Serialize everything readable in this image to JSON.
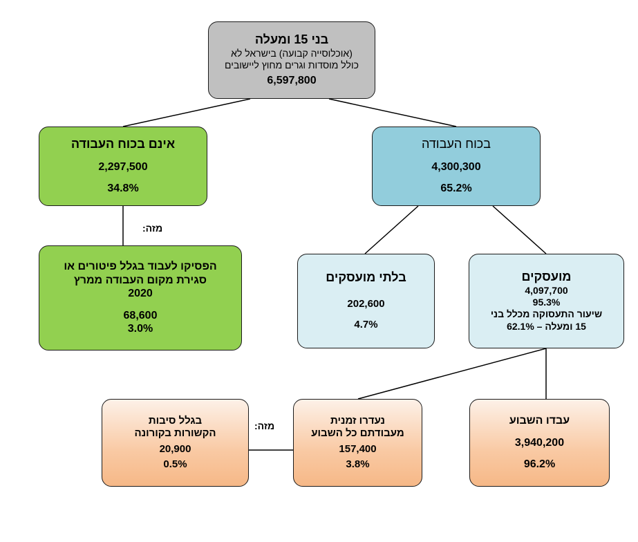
{
  "root": {
    "title": "בני 15 ומעלה",
    "subtitle_line1": "(אוכלוסייה קבועה) בישראל לא",
    "subtitle_line2": "כולל מוסדות וגרים מחוץ ליישובים",
    "value": "6,597,800"
  },
  "labor_force": {
    "title": "בכוח העבודה",
    "value": "4,300,300",
    "percent": "65.2%"
  },
  "not_labor_force": {
    "title": "אינם בכוח העבודה",
    "value": "2,297,500",
    "percent": "34.8%"
  },
  "of_which_labels": {
    "left": "מזה:",
    "bottom": "מזה:"
  },
  "stopped_working": {
    "line1": "הפסיקו לעבוד בגלל פיטורים או",
    "line2": "סגירת מקום העבודה ממרץ",
    "line3": "2020",
    "value": "68,600",
    "percent": "3.0%"
  },
  "unemployed": {
    "title": "בלתי מועסקים",
    "value": "202,600",
    "percent": "4.7%"
  },
  "employed": {
    "title": "מועסקים",
    "value": "4,097,700",
    "percent": "95.3%",
    "rate_line1": "שיעור התעסוקה מכלל בני",
    "rate_line2": "15 ומעלה – 62.1%"
  },
  "worked_this_week": {
    "title": "עבדו השבוע",
    "value": "3,940,200",
    "percent": "96.2%"
  },
  "temporarily_absent": {
    "line1": "נעדרו זמנית",
    "line2": "מעבודתם כל השבוע",
    "value": "157,400",
    "percent": "3.8%"
  },
  "corona_reasons": {
    "line1": "בגלל סיבות",
    "line2": "הקשורות בקורונה",
    "value": "20,900",
    "percent": "0.5%"
  }
}
